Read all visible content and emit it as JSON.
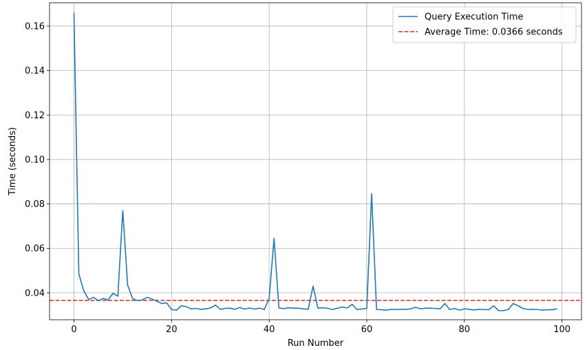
{
  "chart_data": {
    "type": "line",
    "title": "",
    "xlabel": "Run Number",
    "ylabel": "Time (seconds)",
    "xlim": [
      -5,
      104
    ],
    "ylim": [
      0.0279,
      0.1705
    ],
    "xticks": [
      0,
      20,
      40,
      60,
      80,
      100
    ],
    "yticks": [
      0.04,
      0.06,
      0.08,
      0.1,
      0.12,
      0.14,
      0.16
    ],
    "xtick_labels": [
      "0",
      "20",
      "40",
      "60",
      "80",
      "100"
    ],
    "ytick_labels": [
      "0.04",
      "0.06",
      "0.08",
      "0.10",
      "0.12",
      "0.14",
      "0.16"
    ],
    "grid": true,
    "legend_position": "top-right",
    "series": [
      {
        "name": "Query Execution Time",
        "color": "#1f77b4",
        "style": "solid",
        "x": [
          0,
          1,
          2,
          3,
          4,
          5,
          6,
          7,
          8,
          9,
          10,
          11,
          12,
          13,
          14,
          15,
          16,
          17,
          18,
          19,
          20,
          21,
          22,
          23,
          24,
          25,
          26,
          27,
          28,
          29,
          30,
          31,
          32,
          33,
          34,
          35,
          36,
          37,
          38,
          39,
          40,
          41,
          42,
          43,
          44,
          45,
          46,
          47,
          48,
          49,
          50,
          51,
          52,
          53,
          54,
          55,
          56,
          57,
          58,
          59,
          60,
          61,
          62,
          63,
          64,
          65,
          66,
          67,
          68,
          69,
          70,
          71,
          72,
          73,
          74,
          75,
          76,
          77,
          78,
          79,
          80,
          81,
          82,
          83,
          84,
          85,
          86,
          87,
          88,
          89,
          90,
          91,
          92,
          93,
          94,
          95,
          96,
          97,
          98,
          99
        ],
        "values": [
          0.166,
          0.0485,
          0.041,
          0.037,
          0.038,
          0.0365,
          0.0375,
          0.0368,
          0.0398,
          0.0385,
          0.077,
          0.0435,
          0.0375,
          0.0365,
          0.0368,
          0.038,
          0.0372,
          0.0362,
          0.0352,
          0.0355,
          0.0325,
          0.0322,
          0.0342,
          0.0338,
          0.0328,
          0.033,
          0.0326,
          0.0328,
          0.0332,
          0.0345,
          0.0326,
          0.033,
          0.0331,
          0.0326,
          0.0334,
          0.0327,
          0.0332,
          0.0327,
          0.0331,
          0.0325,
          0.0375,
          0.0645,
          0.0332,
          0.0329,
          0.0333,
          0.0331,
          0.0331,
          0.0328,
          0.0326,
          0.043,
          0.0331,
          0.0333,
          0.033,
          0.0325,
          0.0331,
          0.0336,
          0.0332,
          0.0348,
          0.0325,
          0.0327,
          0.033,
          0.0846,
          0.0325,
          0.0324,
          0.0322,
          0.0326,
          0.0325,
          0.0326,
          0.0326,
          0.0328,
          0.0335,
          0.0328,
          0.0331,
          0.0331,
          0.033,
          0.0328,
          0.0352,
          0.0325,
          0.033,
          0.0322,
          0.0328,
          0.0326,
          0.0323,
          0.0326,
          0.0325,
          0.0324,
          0.0342,
          0.032,
          0.032,
          0.0325,
          0.0352,
          0.0342,
          0.033,
          0.0325,
          0.0326,
          0.0325,
          0.0322,
          0.0324,
          0.0324,
          0.0328
        ]
      }
    ],
    "reference_lines": [
      {
        "name": "Average Time: 0.0366 seconds",
        "value": 0.0366,
        "color": "#d62728",
        "style": "dashed"
      }
    ]
  }
}
